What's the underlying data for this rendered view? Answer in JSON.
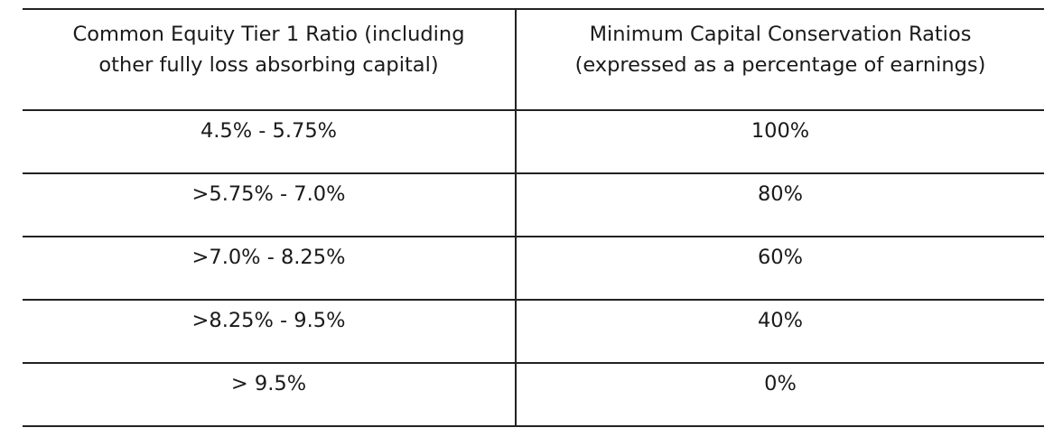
{
  "table": {
    "headers": [
      "Common Equity Tier 1 Ratio (including other fully loss absorbing capital)",
      "Minimum Capital Conservation Ratios (expressed as a percentage of earnings)"
    ],
    "rows": [
      [
        "4.5% - 5.75%",
        "100%"
      ],
      [
        ">5.75% - 7.0%",
        "80%"
      ],
      [
        ">7.0% - 8.25%",
        "60%"
      ],
      [
        ">8.25% - 9.5%",
        "40%"
      ],
      [
        "> 9.5%",
        "0%"
      ]
    ]
  }
}
